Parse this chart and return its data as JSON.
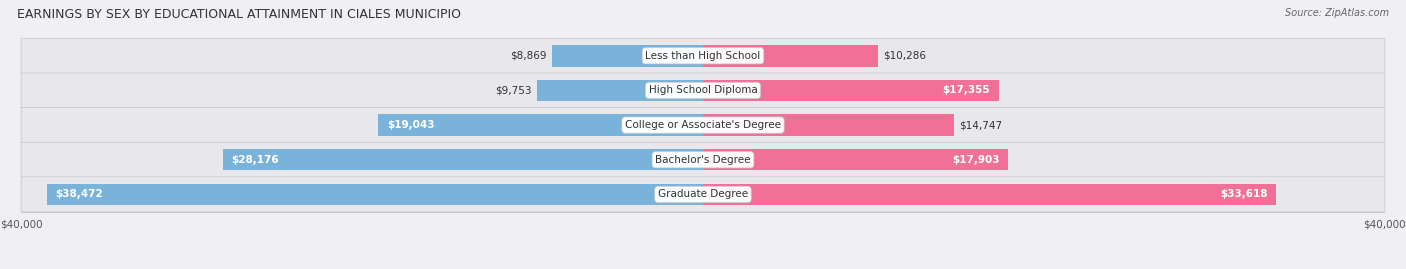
{
  "title": "EARNINGS BY SEX BY EDUCATIONAL ATTAINMENT IN CIALES MUNICIPIO",
  "source": "Source: ZipAtlas.com",
  "categories": [
    "Less than High School",
    "High School Diploma",
    "College or Associate's Degree",
    "Bachelor's Degree",
    "Graduate Degree"
  ],
  "male_values": [
    8869,
    9753,
    19043,
    28176,
    38472
  ],
  "female_values": [
    10286,
    17355,
    14747,
    17903,
    33618
  ],
  "male_labels": [
    "$8,869",
    "$9,753",
    "$19,043",
    "$28,176",
    "$38,472"
  ],
  "female_labels": [
    "$10,286",
    "$17,355",
    "$14,747",
    "$17,903",
    "$33,618"
  ],
  "male_inside_threshold": 15000,
  "female_inside_threshold": 15000,
  "axis_max": 40000,
  "male_color": "#7ab3d9",
  "female_color": "#f07098",
  "row_bg_color": "#e8e8ec",
  "row_bg_outer": "#d8d8de",
  "bg_color": "#f0f0f4",
  "title_fontsize": 9,
  "label_fontsize": 7.5,
  "value_fontsize": 7.5,
  "axis_label_fontsize": 7.5,
  "title_color": "#333333",
  "source_color": "#666666"
}
